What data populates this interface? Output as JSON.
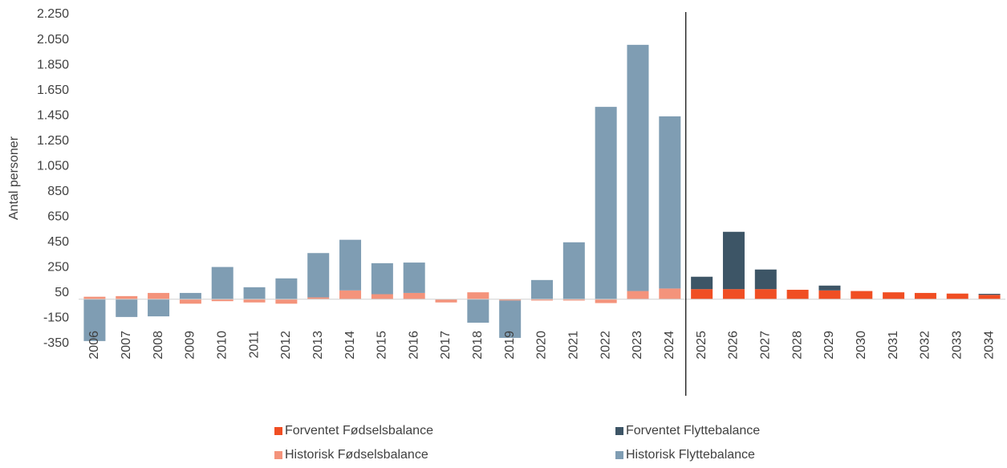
{
  "chart_data": {
    "type": "bar",
    "stacked": true,
    "y_label": "Antal personer",
    "categories": [
      "2006",
      "2007",
      "2008",
      "2009",
      "2010",
      "2011",
      "2012",
      "2013",
      "2014",
      "2015",
      "2016",
      "2017",
      "2018",
      "2019",
      "2020",
      "2021",
      "2022",
      "2023",
      "2024",
      "2025",
      "2026",
      "2027",
      "2028",
      "2029",
      "2030",
      "2031",
      "2032",
      "2033",
      "2034"
    ],
    "series": [
      {
        "name": "Forventet Fødselsbalance",
        "color": "#f04e23",
        "values": [
          null,
          null,
          null,
          null,
          null,
          null,
          null,
          null,
          null,
          null,
          null,
          null,
          null,
          null,
          null,
          null,
          null,
          null,
          null,
          80,
          80,
          80,
          75,
          70,
          65,
          55,
          50,
          45,
          35
        ]
      },
      {
        "name": "Forventet Flyttebalance",
        "color": "#3d5566",
        "values": [
          null,
          null,
          null,
          null,
          null,
          null,
          null,
          null,
          null,
          null,
          null,
          null,
          null,
          null,
          null,
          null,
          null,
          null,
          null,
          98,
          453,
          155,
          0,
          38,
          0,
          0,
          0,
          0,
          8
        ]
      },
      {
        "name": "Historisk Fødselsbalance",
        "color": "#f4937b",
        "values": [
          20,
          25,
          50,
          -35,
          -15,
          -25,
          -35,
          15,
          70,
          40,
          50,
          -25,
          55,
          -10,
          -10,
          -10,
          -30,
          65,
          85,
          null,
          null,
          null,
          null,
          null,
          null,
          null,
          null,
          null,
          null
        ]
      },
      {
        "name": "Historisk Flyttebalance",
        "color": "#7f9db3",
        "values": [
          -330,
          -140,
          -135,
          50,
          255,
          95,
          165,
          350,
          400,
          245,
          240,
          0,
          -185,
          -295,
          152,
          450,
          1520,
          1945,
          1360,
          null,
          null,
          null,
          null,
          null,
          null,
          null,
          null,
          null,
          null
        ]
      }
    ],
    "ylim": [
      -350,
      2250
    ],
    "yticks": [
      -350,
      -150,
      50,
      250,
      450,
      650,
      850,
      {
        "value": 1050,
        "label": "1.050"
      },
      {
        "value": 1250,
        "label": "1.250"
      },
      {
        "value": 1450,
        "label": "1.450"
      },
      {
        "value": 1650,
        "label": "1.650"
      },
      {
        "value": 1850,
        "label": "1.850"
      },
      {
        "value": 2050,
        "label": "2.050"
      },
      {
        "value": 2250,
        "label": "2.250"
      }
    ],
    "grid": false,
    "legend": "bottom"
  }
}
